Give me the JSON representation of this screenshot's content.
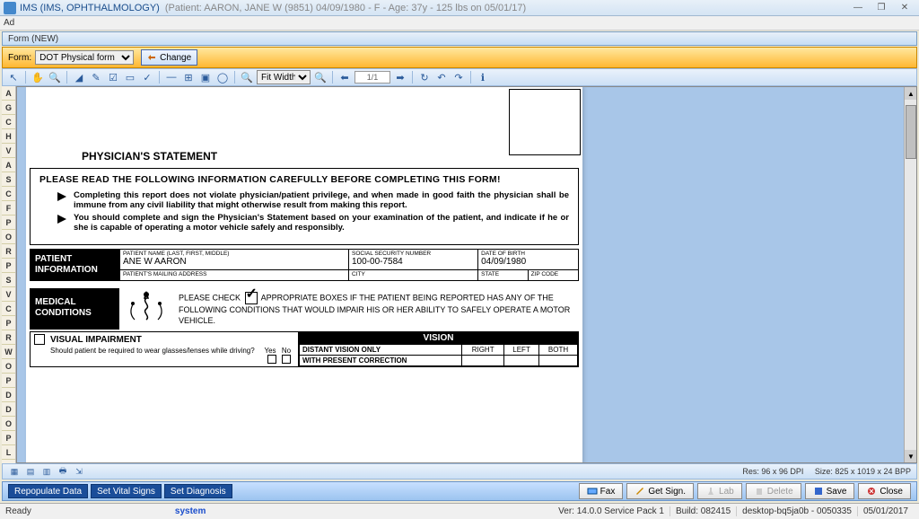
{
  "window": {
    "app_title": "IMS (IMS, OPHTHALMOLOGY)",
    "patient_info": "(Patient: AARON, JANE W (9851) 04/09/1980 - F - Age: 37y  - 125 lbs on 05/01/17)",
    "menu_ad": "Ad",
    "sub_title": "Form (NEW)"
  },
  "formbar": {
    "label": "Form:",
    "selected": "DOT Physical form",
    "change": "Change"
  },
  "toolbar": {
    "zoom": "Fit Width",
    "page": "1/1"
  },
  "letter_strip": [
    "A",
    "G",
    "C",
    "H",
    "V",
    "A",
    "S",
    "C",
    "F",
    "P",
    "O",
    "R",
    "P",
    "S",
    "V",
    "C",
    "P",
    "R",
    "W",
    "O",
    "P",
    "D",
    "D",
    "O",
    "P",
    "L"
  ],
  "doc": {
    "heading": "PHYSICIAN'S STATEMENT",
    "notice_lead": "PLEASE READ THE FOLLOWING INFORMATION CAREFULLY BEFORE COMPLETING THIS FORM!",
    "notice1": "Completing this report does not violate physician/patient privilege, and when made in good faith the physician shall be immune from any civil liability that might otherwise result from making this report.",
    "notice2": "You should complete and sign the Physician's Statement based on your examination of the patient, and indicate if he or she is capable of operating a motor vehicle safely and responsibly.",
    "pi_label": "PATIENT INFORMATION",
    "fields": {
      "name_lbl": "PATIENT NAME (LAST, FIRST, MIDDLE)",
      "name_val": "ANE W AARON",
      "ssn_lbl": "SOCIAL SECURITY NUMBER",
      "ssn_val": "100-00-7584",
      "dob_lbl": "DATE OF BIRTH",
      "dob_val": "04/09/1980",
      "addr_lbl": "PATIENT'S MAILING ADDRESS",
      "city_lbl": "CITY",
      "state_lbl": "STATE",
      "zip_lbl": "ZIP CODE"
    },
    "mc_label": "MEDICAL CONDITIONS",
    "mc_text1": "PLEASE CHECK",
    "mc_text2": "APPROPRIATE BOXES IF THE PATIENT BEING REPORTED HAS ANY OF THE FOLLOWING CONDITIONS THAT WOULD IMPAIR HIS OR HER ABILITY TO SAFELY OPERATE A MOTOR VEHICLE.",
    "vi_title": "VISUAL IMPAIRMENT",
    "vi_sub": "Should patient be required to wear glasses/lenses while driving?",
    "vi_yes": "Yes",
    "vi_no": "No",
    "vision_hdr": "VISION",
    "vcols": [
      "DISTANT VISION ONLY",
      "RIGHT",
      "LEFT",
      "BOTH"
    ],
    "vrow2": "WITH PRESENT CORRECTION"
  },
  "docbtm": {
    "res": "Res:  96 x 96 DPI",
    "size": "Size: 825 x 1019 x 24 BPP"
  },
  "actions": {
    "repop": "Repopulate Data",
    "vitals": "Set Vital Signs",
    "diag": "Set Diagnosis",
    "fax": "Fax",
    "sign": "Get Sign.",
    "lab": "Lab",
    "delete": "Delete",
    "save": "Save",
    "close": "Close"
  },
  "status": {
    "ready": "Ready",
    "system": "system",
    "ver": "Ver: 14.0.0 Service Pack 1",
    "build": "Build: 082415",
    "desktop": "desktop-bq5ja0b - 0050335",
    "date": "05/01/2017"
  },
  "colors": {
    "orange_grad_top": "#ffe8a0",
    "orange_grad_bot": "#ffb732",
    "blue_bar_top": "#eaf2fb",
    "blue_bar_bot": "#cce0f5",
    "doc_bg": "#a8c6e8",
    "action_btn": "#1a4d99"
  }
}
